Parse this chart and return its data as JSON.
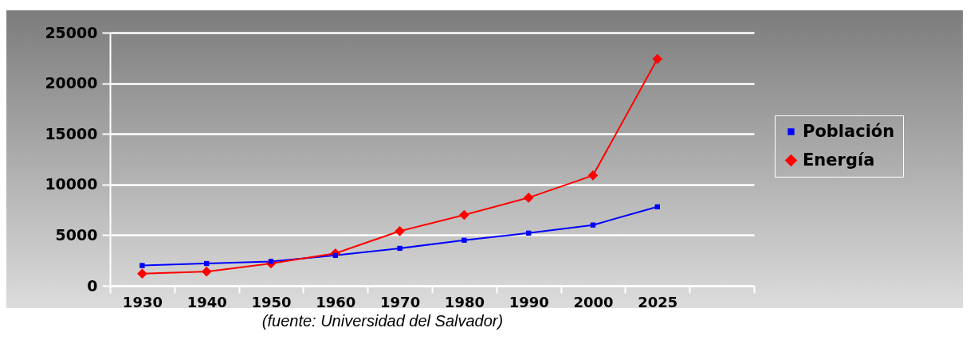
{
  "chart_data": {
    "type": "line",
    "categories": [
      "1930",
      "1940",
      "1950",
      "1960",
      "1970",
      "1980",
      "1990",
      "2000",
      "2025",
      null
    ],
    "series": [
      {
        "name": "Población",
        "color": "#0000ff",
        "marker": "square",
        "values": [
          2000,
          2200,
          2400,
          3000,
          3700,
          4500,
          5200,
          6000,
          7800,
          null
        ]
      },
      {
        "name": "Energía",
        "color": "#ff0000",
        "marker": "diamond",
        "values": [
          1200,
          1400,
          2200,
          3200,
          5400,
          7000,
          8700,
          10900,
          22400,
          null
        ]
      }
    ],
    "ylim": [
      0,
      25000
    ],
    "yticks": [
      0,
      5000,
      10000,
      15000,
      20000,
      25000
    ],
    "grid": true,
    "legend": "right",
    "annotations": [
      "(fuente: Universidad del Salvador)"
    ]
  }
}
